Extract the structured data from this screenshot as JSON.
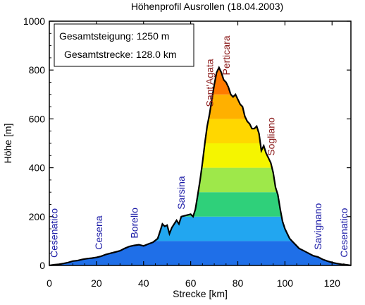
{
  "chart_data": {
    "type": "area",
    "title": "Höhenprofil Ausrollen (18.04.2003)",
    "xlabel": "Strecke [km]",
    "ylabel": "Höhe [m]",
    "xlim": [
      0,
      128
    ],
    "ylim": [
      0,
      1000
    ],
    "xticks": [
      0,
      20,
      40,
      60,
      80,
      100,
      120
    ],
    "yticks": [
      0,
      200,
      400,
      600,
      800,
      1000
    ],
    "summary_lines": [
      "Gesamtsteigung: 1250 m",
      "Gesamtstrecke: 128.0 km"
    ],
    "color_bands": [
      {
        "from": 0,
        "to": 100,
        "color": "#1f6fe8"
      },
      {
        "from": 100,
        "to": 200,
        "color": "#22a6f0"
      },
      {
        "from": 200,
        "to": 300,
        "color": "#2fd07a"
      },
      {
        "from": 300,
        "to": 400,
        "color": "#9ee84a"
      },
      {
        "from": 400,
        "to": 500,
        "color": "#f5f500"
      },
      {
        "from": 500,
        "to": 600,
        "color": "#ffd700"
      },
      {
        "from": 600,
        "to": 700,
        "color": "#ffb000"
      },
      {
        "from": 700,
        "to": 800,
        "color": "#ff7a00"
      },
      {
        "from": 800,
        "to": 900,
        "color": "#ff3000"
      }
    ],
    "profile": {
      "x": [
        0,
        2,
        4,
        6,
        8,
        10,
        12,
        14,
        16,
        18,
        20,
        22,
        24,
        26,
        28,
        30,
        32,
        34,
        36,
        38,
        40,
        42,
        44,
        46,
        47,
        48,
        49,
        50,
        51,
        52,
        54,
        55,
        56,
        58,
        60,
        61,
        62,
        63,
        64,
        65,
        66,
        67,
        68,
        69,
        70,
        71,
        72,
        73,
        74,
        75,
        76,
        77,
        78,
        79,
        80,
        81,
        82,
        83,
        84,
        85,
        86,
        87,
        88,
        89,
        90,
        91,
        92,
        93,
        94,
        95,
        96,
        97,
        98,
        99,
        100,
        101,
        102,
        103,
        104,
        105,
        106,
        108,
        110,
        112,
        114,
        116,
        118,
        120,
        122,
        124,
        126,
        128
      ],
      "y": [
        0,
        3,
        5,
        8,
        12,
        18,
        20,
        25,
        28,
        30,
        33,
        38,
        45,
        50,
        55,
        60,
        70,
        78,
        82,
        85,
        80,
        88,
        95,
        110,
        140,
        170,
        160,
        165,
        130,
        155,
        185,
        170,
        200,
        205,
        210,
        200,
        230,
        290,
        350,
        420,
        500,
        570,
        620,
        680,
        740,
        790,
        810,
        790,
        760,
        750,
        730,
        700,
        690,
        700,
        680,
        660,
        650,
        610,
        590,
        580,
        560,
        560,
        570,
        540,
        470,
        490,
        460,
        440,
        420,
        380,
        320,
        290,
        230,
        180,
        150,
        130,
        110,
        100,
        90,
        80,
        70,
        60,
        50,
        40,
        35,
        25,
        18,
        12,
        8,
        5,
        3,
        0
      ]
    },
    "place_labels": [
      {
        "name": "Cesenatico",
        "km": 2,
        "color": "#1a1aa6"
      },
      {
        "name": "Cesena",
        "km": 21,
        "color": "#1a1aa6"
      },
      {
        "name": "Borello",
        "km": 36,
        "color": "#1a1aa6"
      },
      {
        "name": "Sarsina",
        "km": 56,
        "color": "#1a1aa6"
      },
      {
        "name": "Sant'Agata",
        "km": 68,
        "color": "#8b1a1a"
      },
      {
        "name": "Perticara",
        "km": 75,
        "color": "#8b1a1a"
      },
      {
        "name": "Sogliano",
        "km": 94,
        "color": "#8b1a1a"
      },
      {
        "name": "Savignano",
        "km": 114,
        "color": "#1a1aa6"
      },
      {
        "name": "Cesenatico",
        "km": 125,
        "color": "#1a1aa6"
      }
    ]
  }
}
